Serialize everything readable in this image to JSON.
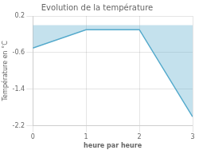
{
  "chart_data": {
    "type": "area",
    "title": "Evolution de la température",
    "xlabel": "heure par heure",
    "ylabel": "Température en °C",
    "x": [
      0,
      1,
      2,
      3
    ],
    "values": [
      -0.5,
      -0.1,
      -0.1,
      -2.0
    ],
    "color": "#55aacc",
    "xlim": [
      0,
      3
    ],
    "xticks": [
      0,
      1,
      2,
      3
    ],
    "ylim": [
      -2.2,
      0.2
    ],
    "yticks": [
      0.2,
      -0.6,
      -1.4,
      -2.2
    ],
    "grid": true
  }
}
